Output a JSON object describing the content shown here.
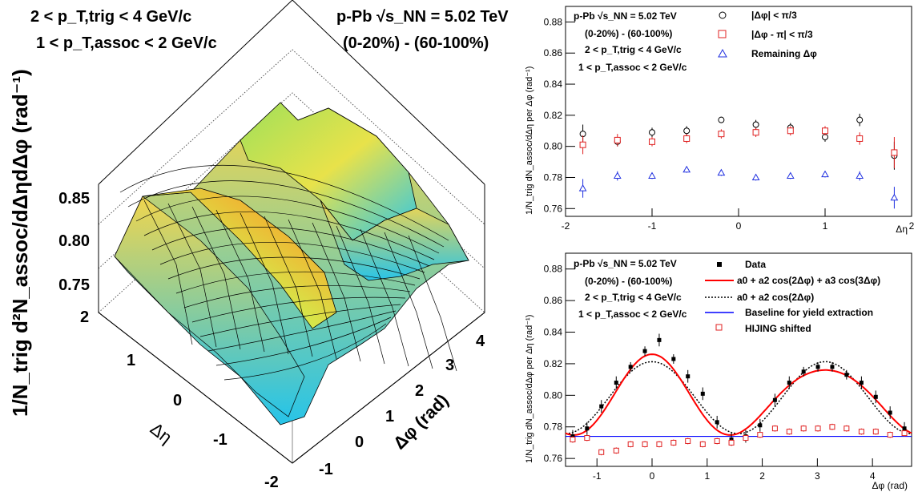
{
  "left_panel": {
    "header_left": [
      "2 < p_T,trig < 4 GeV/c",
      "1 < p_T,assoc < 2 GeV/c"
    ],
    "header_right": [
      "p-Pb √s_NN = 5.02 TeV",
      "(0-20%) - (60-100%)"
    ],
    "z_axis_label": "1/N_trig d²N_assoc/dΔηdΔφ (rad⁻¹)",
    "z_ticks": [
      "0.85",
      "0.80",
      "0.75"
    ],
    "eta_ticks": [
      "2",
      "1",
      "0",
      "-1",
      "-2"
    ],
    "eta_label": "Δη",
    "phi_ticks": [
      "4",
      "3",
      "2",
      "1",
      "0",
      "-1"
    ],
    "phi_label": "Δφ (rad)",
    "colors": {
      "low": "#1ec8e8",
      "mid": "#e6e64a",
      "high": "#ff5010"
    }
  },
  "chart_data": [
    {
      "type": "scatter",
      "panel": "top-right",
      "annotation": [
        "p-Pb √s_NN = 5.02 TeV",
        "(0-20%) - (60-100%)",
        "2 < p_T,trig < 4 GeV/c",
        "1 < p_T,assoc < 2 GeV/c"
      ],
      "xlabel": "Δη",
      "ylabel": "1/N_trig dN_assoc/dΔη per Δφ (rad⁻¹)",
      "xlim": [
        -2,
        2
      ],
      "ylim": [
        0.755,
        0.89
      ],
      "xticks": [
        "-2",
        "-1",
        "0",
        "1",
        "2"
      ],
      "yticks": [
        "0.76",
        "0.78",
        "0.80",
        "0.82",
        "0.84",
        "0.86",
        "0.88"
      ],
      "legend_position": "top-right",
      "series": [
        {
          "name": "|Δφ| < π/3",
          "marker": "open-circle",
          "color": "#000000",
          "x": [
            -1.8,
            -1.4,
            -1.0,
            -0.6,
            -0.2,
            0.2,
            0.6,
            1.0,
            1.4,
            1.8
          ],
          "y": [
            0.808,
            0.803,
            0.809,
            0.81,
            0.817,
            0.814,
            0.812,
            0.806,
            0.817,
            0.794
          ],
          "err": [
            0.006,
            0.003,
            0.003,
            0.003,
            0.002,
            0.003,
            0.003,
            0.003,
            0.004,
            0.009
          ]
        },
        {
          "name": "|Δφ - π| < π/3",
          "marker": "open-square",
          "color": "#e02020",
          "x": [
            -1.8,
            -1.4,
            -1.0,
            -0.6,
            -0.2,
            0.2,
            0.6,
            1.0,
            1.4,
            1.8
          ],
          "y": [
            0.801,
            0.804,
            0.803,
            0.805,
            0.808,
            0.809,
            0.81,
            0.81,
            0.805,
            0.796
          ],
          "err": [
            0.006,
            0.004,
            0.003,
            0.003,
            0.003,
            0.003,
            0.003,
            0.003,
            0.004,
            0.01
          ]
        },
        {
          "name": "Remaining Δφ",
          "marker": "open-triangle",
          "color": "#2030e0",
          "x": [
            -1.8,
            -1.4,
            -1.0,
            -0.6,
            -0.2,
            0.2,
            0.6,
            1.0,
            1.4,
            1.8
          ],
          "y": [
            0.773,
            0.781,
            0.781,
            0.785,
            0.783,
            0.78,
            0.781,
            0.782,
            0.781,
            0.767
          ],
          "err": [
            0.006,
            0.003,
            0.002,
            0.002,
            0.002,
            0.002,
            0.002,
            0.002,
            0.003,
            0.007
          ]
        }
      ]
    },
    {
      "type": "scatter",
      "panel": "bottom-right",
      "annotation": [
        "p-Pb √s_NN = 5.02 TeV",
        "(0-20%) - (60-100%)",
        "2 < p_T,trig < 4 GeV/c",
        "1 < p_T,assoc < 2 GeV/c"
      ],
      "xlabel": "Δφ (rad)",
      "ylabel": "1/N_trig dN_assoc/dΔφ per Δη (rad⁻¹)",
      "xlim": [
        -1.57,
        4.71
      ],
      "ylim": [
        0.755,
        0.89
      ],
      "xticks": [
        "-1",
        "0",
        "1",
        "2",
        "3",
        "4"
      ],
      "yticks": [
        "0.76",
        "0.78",
        "0.80",
        "0.82",
        "0.84",
        "0.86",
        "0.88"
      ],
      "legend_position": "top-right",
      "legend": [
        "Data",
        "a0 + a2 cos(2Δφ) + a3 cos(3Δφ)",
        "a0 + a2 cos(2Δφ)",
        "Baseline for yield extraction",
        "HIJING shifted"
      ],
      "fit_full": {
        "a0": 0.7985,
        "a2": 0.0225,
        "a3": 0.005,
        "color": "#ff0000"
      },
      "fit_v2": {
        "a0": 0.7985,
        "a2": 0.0228,
        "color": "#000000"
      },
      "baseline": {
        "y": 0.774,
        "color": "#0000ff"
      },
      "series": [
        {
          "name": "Data",
          "marker": "filled-square",
          "color": "#000000",
          "x": [
            -1.44,
            -1.18,
            -0.92,
            -0.65,
            -0.39,
            -0.13,
            0.13,
            0.39,
            0.65,
            0.92,
            1.18,
            1.44,
            1.7,
            1.96,
            2.23,
            2.49,
            2.75,
            3.01,
            3.27,
            3.53,
            3.8,
            4.06,
            4.32,
            4.58
          ],
          "y": [
            0.774,
            0.779,
            0.793,
            0.808,
            0.818,
            0.828,
            0.835,
            0.823,
            0.812,
            0.801,
            0.783,
            0.772,
            0.774,
            0.781,
            0.797,
            0.808,
            0.815,
            0.818,
            0.818,
            0.813,
            0.808,
            0.799,
            0.789,
            0.779
          ],
          "err": [
            0.004,
            0.004,
            0.004,
            0.004,
            0.003,
            0.003,
            0.004,
            0.003,
            0.004,
            0.004,
            0.004,
            0.004,
            0.004,
            0.004,
            0.004,
            0.004,
            0.003,
            0.003,
            0.003,
            0.003,
            0.004,
            0.004,
            0.004,
            0.004
          ]
        },
        {
          "name": "HIJING shifted",
          "marker": "open-square",
          "color": "#e02020",
          "x": [
            -1.44,
            -1.18,
            -0.92,
            -0.65,
            -0.39,
            -0.13,
            0.13,
            0.39,
            0.65,
            0.92,
            1.18,
            1.44,
            1.7,
            1.96,
            2.23,
            2.49,
            2.75,
            3.01,
            3.27,
            3.53,
            3.8,
            4.06,
            4.32,
            4.58
          ],
          "y": [
            0.772,
            0.773,
            0.764,
            0.765,
            0.769,
            0.769,
            0.769,
            0.77,
            0.771,
            0.769,
            0.771,
            0.77,
            0.773,
            0.775,
            0.779,
            0.777,
            0.779,
            0.779,
            0.78,
            0.779,
            0.777,
            0.777,
            0.775,
            0.776
          ],
          "err": [
            0.002,
            0.002,
            0.002,
            0.002,
            0.002,
            0.002,
            0.002,
            0.002,
            0.002,
            0.002,
            0.002,
            0.002,
            0.002,
            0.002,
            0.002,
            0.002,
            0.002,
            0.002,
            0.002,
            0.002,
            0.002,
            0.002,
            0.002,
            0.002
          ]
        }
      ]
    }
  ]
}
